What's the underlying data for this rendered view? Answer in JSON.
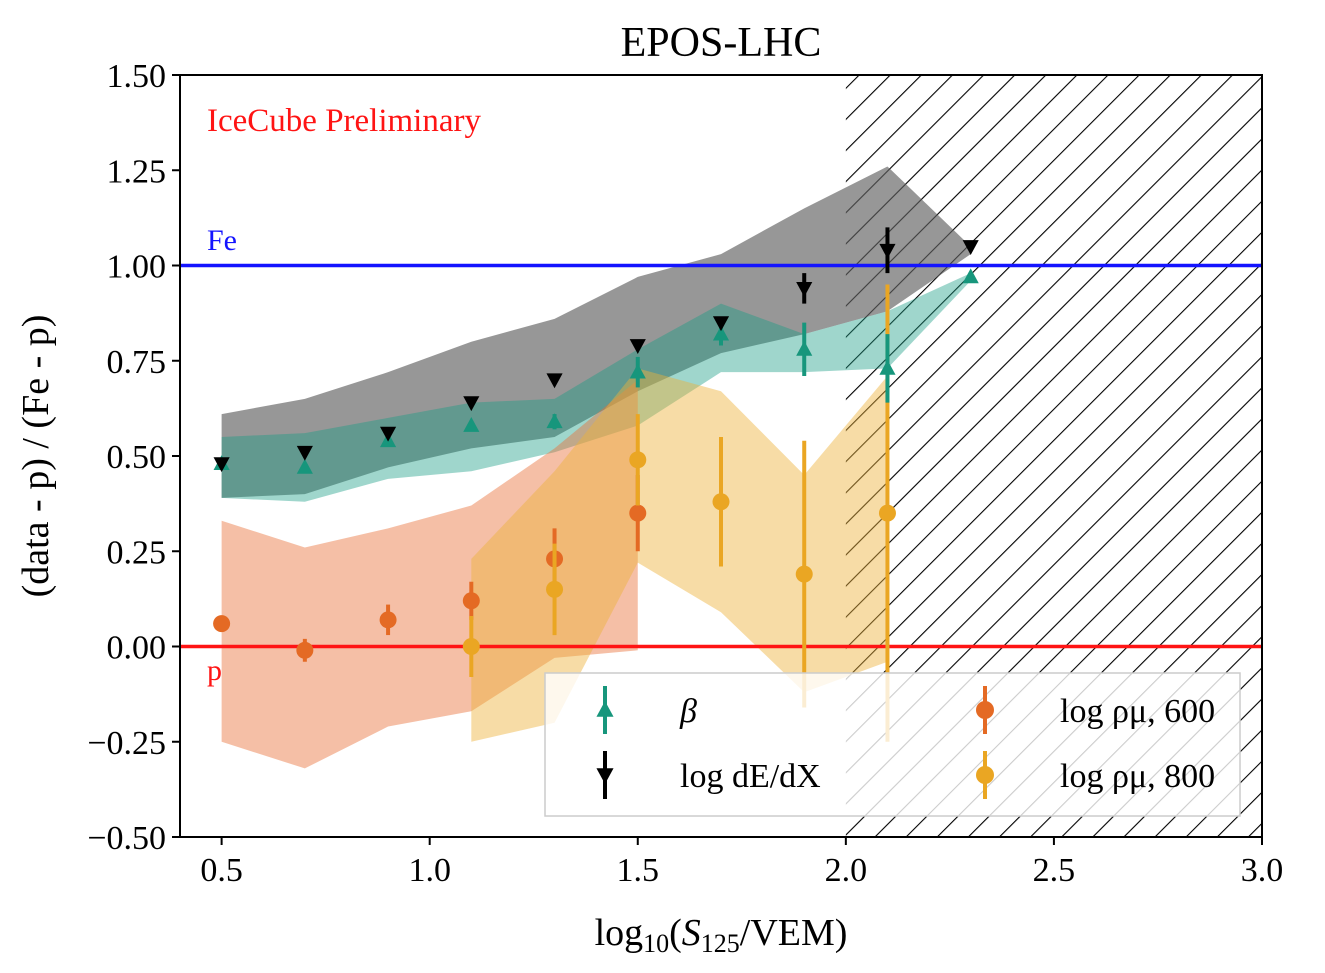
{
  "chart_data": {
    "type": "scatter",
    "title": "EPOS-LHC",
    "xlabel": "log10(S125/VEM)",
    "ylabel": "(data - p) / (Fe - p)",
    "xlim": [
      0.4,
      3.0
    ],
    "ylim": [
      -0.5,
      1.5
    ],
    "xticks": [
      0.5,
      1.0,
      1.5,
      2.0,
      2.5,
      3.0
    ],
    "xtick_labels": [
      "0.5",
      "1.0",
      "1.5",
      "2.0",
      "2.5",
      "3.0"
    ],
    "yticks": [
      -0.5,
      -0.25,
      0.0,
      0.25,
      0.5,
      0.75,
      1.0,
      1.25,
      1.5
    ],
    "ytick_labels": [
      "−0.50",
      "−0.25",
      "0.00",
      "0.25",
      "0.50",
      "0.75",
      "1.00",
      "1.25",
      "1.50"
    ],
    "annotation": "IceCube Preliminary",
    "hatched_region": {
      "x_from": 2.0,
      "x_to": 3.0
    },
    "reference_lines": [
      {
        "name": "Fe",
        "y": 1.0,
        "color": "#1414ff"
      },
      {
        "name": "p",
        "y": 0.0,
        "color": "#ff1414"
      }
    ],
    "bands": [
      {
        "name": "dEdX band",
        "color": "#606060",
        "opacity": 0.65,
        "x": [
          0.5,
          0.7,
          0.9,
          1.1,
          1.3,
          1.5,
          1.7,
          1.9,
          2.1,
          2.3
        ],
        "low": [
          0.39,
          0.4,
          0.47,
          0.52,
          0.55,
          0.67,
          0.77,
          0.82,
          0.88,
          1.03
        ],
        "high": [
          0.61,
          0.65,
          0.72,
          0.8,
          0.86,
          0.97,
          1.03,
          1.15,
          1.26,
          1.05
        ]
      },
      {
        "name": "beta band",
        "color": "#1a9e85",
        "opacity": 0.42,
        "x": [
          0.5,
          0.7,
          0.9,
          1.1,
          1.3,
          1.5,
          1.7,
          1.9,
          2.1,
          2.3
        ],
        "low": [
          0.39,
          0.38,
          0.44,
          0.46,
          0.51,
          0.58,
          0.72,
          0.72,
          0.73,
          0.96
        ],
        "high": [
          0.55,
          0.56,
          0.6,
          0.64,
          0.65,
          0.78,
          0.9,
          0.82,
          0.88,
          0.98
        ]
      },
      {
        "name": "rho600 band",
        "color": "#e8713a",
        "opacity": 0.45,
        "x": [
          0.5,
          0.7,
          0.9,
          1.1,
          1.3,
          1.5
        ],
        "low": [
          -0.25,
          -0.32,
          -0.21,
          -0.17,
          -0.03,
          -0.01
        ],
        "high": [
          0.33,
          0.26,
          0.31,
          0.37,
          0.52,
          0.7
        ]
      },
      {
        "name": "rho800 band",
        "color": "#eeb13a",
        "opacity": 0.45,
        "x": [
          1.1,
          1.3,
          1.5,
          1.7,
          1.9,
          2.1
        ],
        "low": [
          -0.25,
          -0.2,
          0.22,
          0.09,
          -0.12,
          -0.04
        ],
        "high": [
          0.23,
          0.46,
          0.73,
          0.67,
          0.45,
          0.71
        ]
      }
    ],
    "series": [
      {
        "name": "β",
        "legend_label": "β",
        "marker": "triangle-up",
        "color": "#17967c",
        "x": [
          0.5,
          0.7,
          0.9,
          1.1,
          1.3,
          1.5,
          1.7,
          1.9,
          2.1,
          2.3
        ],
        "y": [
          0.48,
          0.47,
          0.54,
          0.58,
          0.59,
          0.72,
          0.82,
          0.78,
          0.73,
          0.97
        ],
        "err": [
          0.01,
          0.01,
          0.01,
          0.01,
          0.02,
          0.04,
          0.03,
          0.07,
          0.09,
          0.01
        ]
      },
      {
        "name": "log dE/dX",
        "legend_label": "log dE/dX",
        "marker": "triangle-down",
        "color": "#000000",
        "x": [
          0.5,
          0.7,
          0.9,
          1.1,
          1.3,
          1.5,
          1.7,
          1.9,
          2.1,
          2.3
        ],
        "y": [
          0.48,
          0.51,
          0.56,
          0.64,
          0.7,
          0.79,
          0.85,
          0.94,
          1.04,
          1.05
        ],
        "err": [
          0.01,
          0.01,
          0.01,
          0.01,
          0.01,
          0.01,
          0.01,
          0.04,
          0.06,
          0.01
        ]
      },
      {
        "name": "log ρμ,600",
        "legend_label": "log ρμ, 600",
        "marker": "circle",
        "color": "#e46a24",
        "x": [
          0.5,
          0.7,
          0.9,
          1.1,
          1.3,
          1.5
        ],
        "y": [
          0.06,
          -0.01,
          0.07,
          0.12,
          0.23,
          0.35
        ],
        "err": [
          0.02,
          0.03,
          0.04,
          0.05,
          0.08,
          0.1
        ]
      },
      {
        "name": "log ρμ,800",
        "legend_label": "log ρμ, 800",
        "marker": "circle",
        "color": "#eaa623",
        "x": [
          1.1,
          1.3,
          1.5,
          1.7,
          1.9,
          2.1
        ],
        "y": [
          0.0,
          0.15,
          0.49,
          0.38,
          0.19,
          0.35
        ],
        "err": [
          0.08,
          0.12,
          0.12,
          0.17,
          0.35,
          0.6
        ]
      }
    ]
  }
}
